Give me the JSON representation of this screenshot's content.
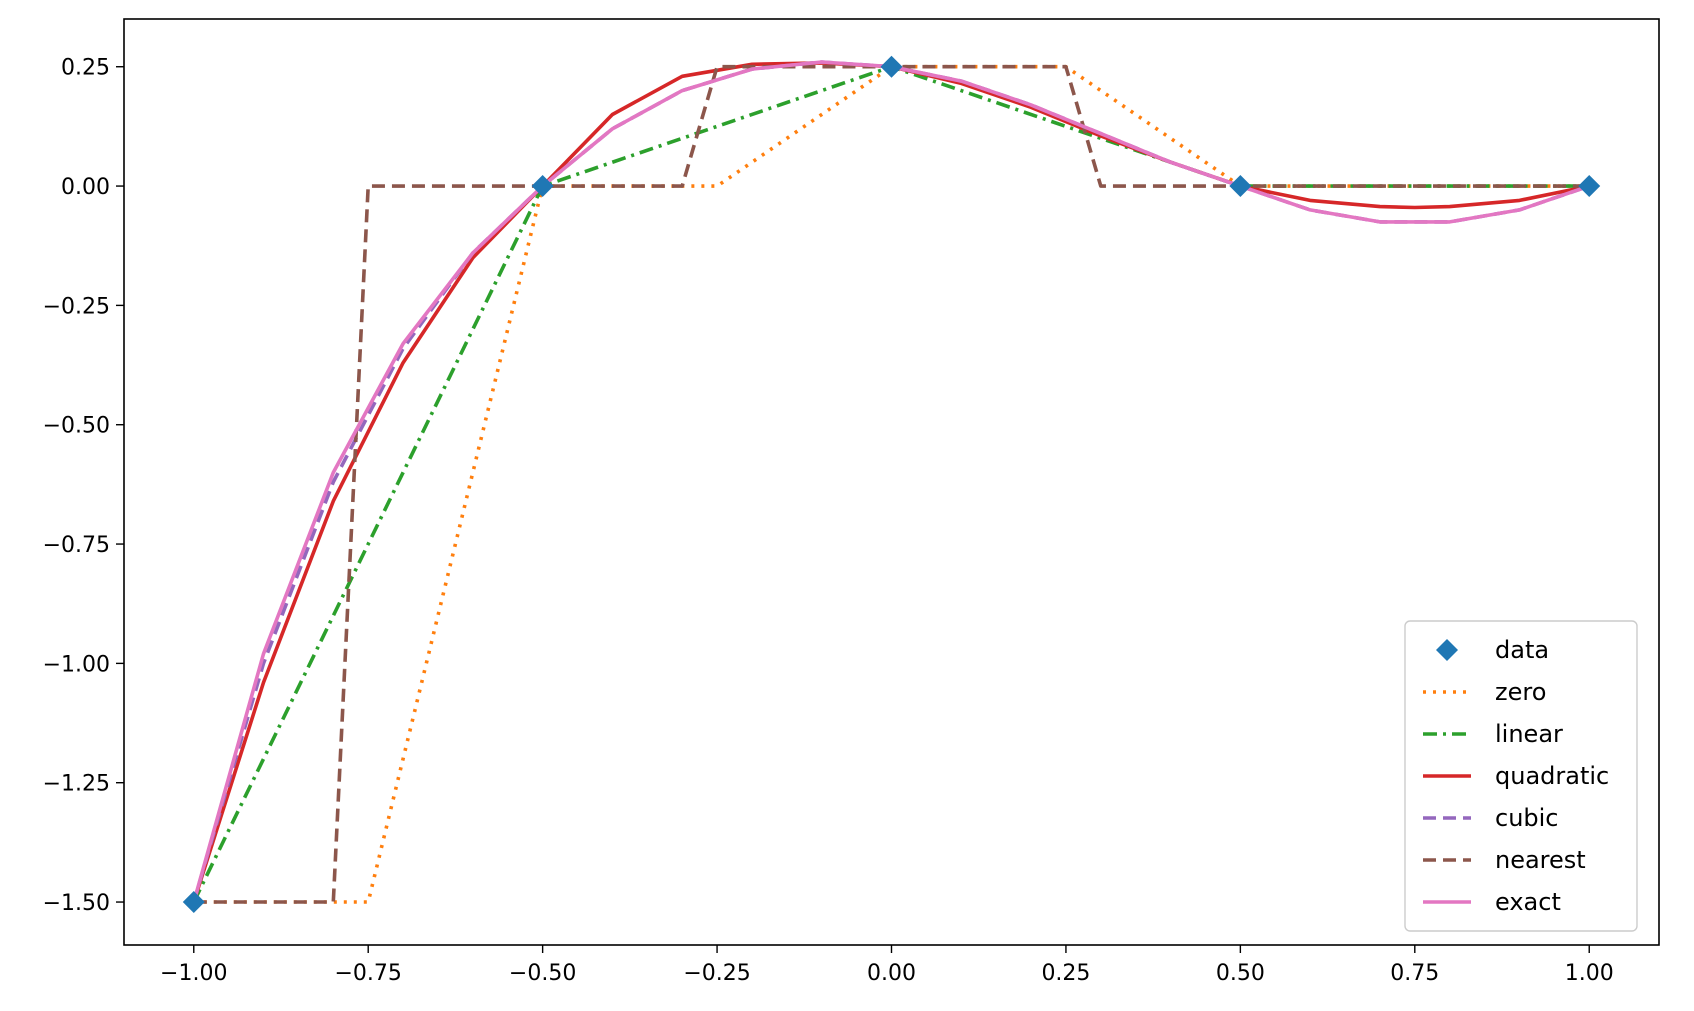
{
  "chart_data": {
    "type": "line",
    "title": "",
    "xlabel": "",
    "ylabel": "",
    "xlim": [
      -1.1,
      1.1
    ],
    "ylim": [
      -1.59,
      0.35
    ],
    "grid": false,
    "legend_position": "lower-right",
    "x_ticks": [
      {
        "value": -1.0,
        "label": "−1.00"
      },
      {
        "value": -0.75,
        "label": "−0.75"
      },
      {
        "value": -0.5,
        "label": "−0.50"
      },
      {
        "value": -0.25,
        "label": "−0.25"
      },
      {
        "value": 0.0,
        "label": "0.00"
      },
      {
        "value": 0.25,
        "label": "0.25"
      },
      {
        "value": 0.5,
        "label": "0.50"
      },
      {
        "value": 0.75,
        "label": "0.75"
      },
      {
        "value": 1.0,
        "label": "1.00"
      }
    ],
    "y_ticks": [
      {
        "value": 0.25,
        "label": "0.25"
      },
      {
        "value": 0.0,
        "label": "0.00"
      },
      {
        "value": -0.25,
        "label": "−0.25"
      },
      {
        "value": -0.5,
        "label": "−0.50"
      },
      {
        "value": -0.75,
        "label": "−0.75"
      },
      {
        "value": -1.0,
        "label": "−1.00"
      },
      {
        "value": -1.25,
        "label": "−1.25"
      },
      {
        "value": -1.5,
        "label": "−1.50"
      }
    ],
    "series": [
      {
        "name": "data",
        "kind": "markers",
        "color": "#1f77b4",
        "marker": "diamond",
        "x": [
          -1.0,
          -0.5,
          0.0,
          0.5,
          1.0
        ],
        "y": [
          -1.5,
          0.0,
          0.25,
          0.0,
          0.0
        ]
      },
      {
        "name": "zero",
        "kind": "line",
        "color": "#ff7f0e",
        "dash": "dotted",
        "x": [
          -1.0,
          -0.75,
          -0.5,
          -0.25,
          0.0,
          0.25,
          0.5,
          0.75,
          1.0
        ],
        "y": [
          -1.5,
          -1.5,
          0.0,
          0.0,
          0.25,
          0.25,
          0.0,
          0.0,
          0.0
        ]
      },
      {
        "name": "linear",
        "kind": "line",
        "color": "#2ca02c",
        "dash": "dashdot",
        "x": [
          -1.0,
          -0.5,
          0.0,
          0.5,
          1.0
        ],
        "y": [
          -1.5,
          0.0,
          0.25,
          0.0,
          0.0
        ]
      },
      {
        "name": "quadratic",
        "kind": "line",
        "color": "#d62728",
        "dash": "solid",
        "x": [
          -1.0,
          -0.9,
          -0.8,
          -0.7,
          -0.6,
          -0.5,
          -0.4,
          -0.3,
          -0.2,
          -0.1,
          0.0,
          0.1,
          0.2,
          0.3,
          0.4,
          0.5,
          0.6,
          0.7,
          0.75,
          0.8,
          0.9,
          1.0
        ],
        "y": [
          -1.5,
          -1.04,
          -0.66,
          -0.37,
          -0.15,
          0.0,
          0.15,
          0.23,
          0.255,
          0.258,
          0.25,
          0.215,
          0.165,
          0.105,
          0.05,
          0.0,
          -0.03,
          -0.043,
          -0.045,
          -0.043,
          -0.03,
          0.0
        ]
      },
      {
        "name": "cubic",
        "kind": "line",
        "color": "#9467bd",
        "dash": "dashed",
        "x": [
          -1.0,
          -0.9,
          -0.8,
          -0.7,
          -0.6,
          -0.5,
          -0.4,
          -0.3,
          -0.2,
          -0.1,
          0.0,
          0.1,
          0.2,
          0.3,
          0.4,
          0.5,
          0.6,
          0.7,
          0.8,
          0.9,
          1.0
        ],
        "y": [
          -1.5,
          -1.0,
          -0.62,
          -0.34,
          -0.14,
          0.0,
          0.12,
          0.2,
          0.245,
          0.26,
          0.25,
          0.22,
          0.17,
          0.11,
          0.05,
          0.0,
          -0.05,
          -0.075,
          -0.075,
          -0.05,
          0.0
        ]
      },
      {
        "name": "nearest",
        "kind": "line",
        "color": "#8c564b",
        "dash": "dashed",
        "x": [
          -1.0,
          -0.8,
          -0.75,
          -0.3,
          -0.25,
          0.25,
          0.3,
          1.0
        ],
        "y": [
          -1.5,
          -1.5,
          0.0,
          0.0,
          0.25,
          0.25,
          0.0,
          0.0
        ]
      },
      {
        "name": "exact",
        "kind": "line",
        "color": "#e377c2",
        "dash": "solid",
        "x": [
          -1.0,
          -0.9,
          -0.8,
          -0.7,
          -0.6,
          -0.5,
          -0.4,
          -0.3,
          -0.2,
          -0.1,
          0.0,
          0.1,
          0.2,
          0.3,
          0.4,
          0.5,
          0.6,
          0.7,
          0.8,
          0.9,
          1.0
        ],
        "y": [
          -1.5,
          -0.98,
          -0.6,
          -0.33,
          -0.14,
          0.0,
          0.12,
          0.2,
          0.245,
          0.26,
          0.25,
          0.22,
          0.17,
          0.11,
          0.05,
          0.0,
          -0.05,
          -0.075,
          -0.075,
          -0.05,
          0.0
        ]
      }
    ]
  }
}
